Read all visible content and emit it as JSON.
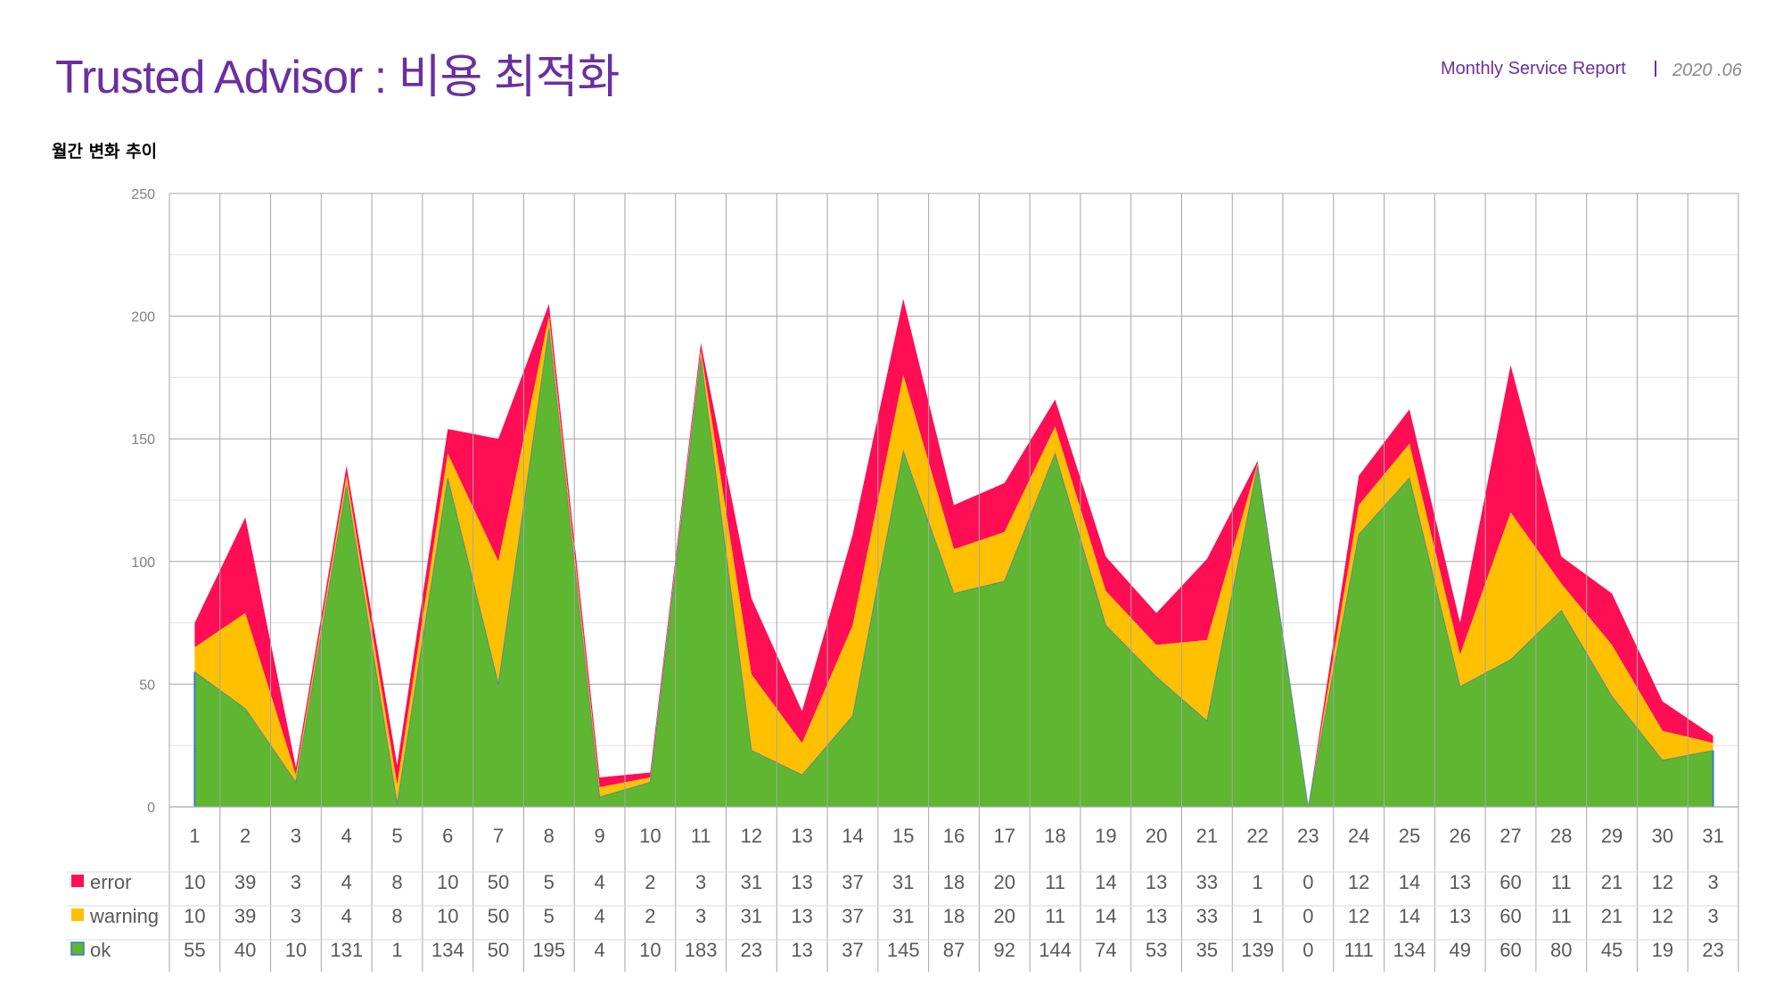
{
  "header": {
    "title": "Trusted Advisor : 비용 최적화",
    "report_label": "Monthly Service Report",
    "date": "2020 .06"
  },
  "chart_heading": "월간 변화 추이",
  "colors": {
    "error": "#ff0d55",
    "warning": "#ffc000",
    "ok": "#5fb731",
    "ok_line": "#3a7ac4",
    "grid": "#a6a6a6",
    "title": "#6a2fa0"
  },
  "chart_data": {
    "type": "area",
    "stacked": true,
    "title": "",
    "xlabel": "",
    "ylabel": "",
    "x": [
      1,
      2,
      3,
      4,
      5,
      6,
      7,
      8,
      9,
      10,
      11,
      12,
      13,
      14,
      15,
      16,
      17,
      18,
      19,
      20,
      21,
      22,
      23,
      24,
      25,
      26,
      27,
      28,
      29,
      30,
      31
    ],
    "x_labels": [
      "1",
      "2",
      "3",
      "4",
      "5",
      "6",
      "7",
      "8",
      "9",
      "10",
      "11",
      "12",
      "13",
      "14",
      "15",
      "16",
      "17",
      "18",
      "19",
      "20",
      "21",
      "22",
      "23",
      "24",
      "25",
      "26",
      "27",
      "28",
      "29",
      "30",
      "31"
    ],
    "ylim": [
      0,
      250
    ],
    "y_ticks": [
      "0",
      "50",
      "100",
      "150",
      "200",
      "250"
    ],
    "grid": true,
    "legend": "data-table",
    "series": [
      {
        "name": "error",
        "color": "#ff0d55",
        "values": [
          10,
          39,
          3,
          4,
          8,
          10,
          50,
          5,
          4,
          2,
          3,
          31,
          13,
          37,
          31,
          18,
          20,
          11,
          14,
          13,
          33,
          1,
          0,
          12,
          14,
          13,
          60,
          11,
          21,
          12,
          3
        ]
      },
      {
        "name": "warning",
        "color": "#ffc000",
        "values": [
          10,
          39,
          3,
          4,
          8,
          10,
          50,
          5,
          4,
          2,
          3,
          31,
          13,
          37,
          31,
          18,
          20,
          11,
          14,
          13,
          33,
          1,
          0,
          12,
          14,
          13,
          60,
          11,
          21,
          12,
          3
        ]
      },
      {
        "name": "ok",
        "color": "#5fb731",
        "values": [
          55,
          40,
          10,
          131,
          1,
          134,
          50,
          195,
          4,
          10,
          183,
          23,
          13,
          37,
          145,
          87,
          92,
          144,
          74,
          53,
          35,
          139,
          0,
          111,
          134,
          49,
          60,
          80,
          45,
          19,
          23
        ]
      }
    ]
  }
}
